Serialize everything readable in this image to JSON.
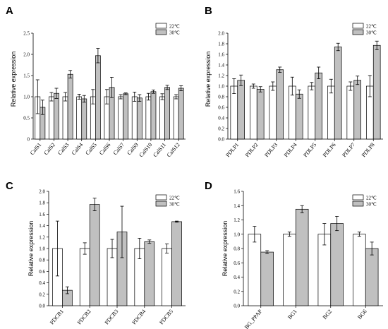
{
  "colors": {
    "s22": "#ffffff",
    "s30": "#c0c0c0",
    "stroke": "#000000"
  },
  "chart_data": [
    {
      "panel": "A",
      "type": "bar",
      "ylabel": "Relative expression",
      "ylim": [
        0,
        2.5
      ],
      "yticks": [
        "0",
        "0.5",
        "1.0",
        "1.5",
        "2.0",
        "2.5"
      ],
      "tick_values": [
        0,
        0.5,
        1.0,
        1.5,
        2.0,
        2.5
      ],
      "categories": [
        "CalS1",
        "CalS2",
        "CalS3",
        "CalS4",
        "CalS5",
        "CalS6",
        "CalS7",
        "CalS9",
        "CalS10",
        "CalS11",
        "CalS12"
      ],
      "series": [
        {
          "name": "22℃",
          "values": [
            1.0,
            1.0,
            1.0,
            1.0,
            1.0,
            1.0,
            1.0,
            1.0,
            1.0,
            1.0,
            1.0
          ],
          "errors": [
            0.4,
            0.1,
            0.1,
            0.06,
            0.17,
            0.17,
            0.05,
            0.11,
            0.08,
            0.07,
            0.05
          ]
        },
        {
          "name": "30℃",
          "values": [
            0.75,
            1.08,
            1.53,
            0.95,
            1.97,
            1.22,
            1.07,
            0.97,
            1.12,
            1.22,
            1.2
          ],
          "errors": [
            0.17,
            0.12,
            0.09,
            0.08,
            0.17,
            0.24,
            0.02,
            0.08,
            0.04,
            0.05,
            0.06
          ]
        }
      ]
    },
    {
      "panel": "B",
      "type": "bar",
      "ylabel": "Relative expression",
      "ylim": [
        0,
        2.0
      ],
      "yticks": [
        "0.0",
        "0.2",
        "0.4",
        "0.6",
        "0.8",
        "1.0",
        "1.2",
        "1.4",
        "1.6",
        "1.8",
        "2.0"
      ],
      "tick_values": [
        0,
        0.2,
        0.4,
        0.6,
        0.8,
        1.0,
        1.2,
        1.4,
        1.6,
        1.8,
        2.0
      ],
      "categories": [
        "PDLP1",
        "PDLP2",
        "PDLP3",
        "PDLP4",
        "PDLP5",
        "PDLP6",
        "PDLP7",
        "PDLP8"
      ],
      "series": [
        {
          "name": "22℃",
          "values": [
            1.0,
            1.0,
            1.0,
            1.0,
            1.0,
            1.0,
            1.0,
            1.0
          ],
          "errors": [
            0.14,
            0.04,
            0.08,
            0.17,
            0.07,
            0.13,
            0.08,
            0.2
          ]
        },
        {
          "name": "30℃",
          "values": [
            1.11,
            0.94,
            1.31,
            0.85,
            1.25,
            1.74,
            1.11,
            1.77
          ],
          "errors": [
            0.1,
            0.05,
            0.05,
            0.08,
            0.11,
            0.07,
            0.08,
            0.08
          ]
        }
      ]
    },
    {
      "panel": "C",
      "type": "bar",
      "ylabel": "Relative expression",
      "ylim": [
        0,
        2.0
      ],
      "yticks": [
        "0.0",
        "0.2",
        "0.4",
        "0.6",
        "0.8",
        "1.0",
        "1.2",
        "1.4",
        "1.6",
        "1.8",
        "2.0"
      ],
      "tick_values": [
        0,
        0.2,
        0.4,
        0.6,
        0.8,
        1.0,
        1.2,
        1.4,
        1.6,
        1.8,
        2.0
      ],
      "categories": [
        "PDCB1",
        "PDCB2",
        "PDCB3",
        "PDCB4",
        "PDCB5"
      ],
      "series": [
        {
          "name": "22℃",
          "values": [
            1.0,
            1.0,
            1.0,
            1.0,
            1.0
          ],
          "errors": [
            0.48,
            0.1,
            0.16,
            0.18,
            0.08
          ]
        },
        {
          "name": "30℃",
          "values": [
            0.27,
            1.77,
            1.29,
            1.12,
            1.47
          ],
          "errors": [
            0.06,
            0.11,
            0.45,
            0.03,
            0.01
          ]
        }
      ]
    },
    {
      "panel": "D",
      "type": "bar",
      "ylabel": "Relative expression",
      "ylim": [
        0,
        1.6
      ],
      "yticks": [
        "0.0",
        "0.2",
        "0.4",
        "0.6",
        "0.8",
        "1.0",
        "1.2",
        "1.4",
        "1.6"
      ],
      "tick_values": [
        0,
        0.2,
        0.4,
        0.6,
        0.8,
        1.0,
        1.2,
        1.4,
        1.6
      ],
      "categories": [
        "BG_PPAP",
        "BG1",
        "BG2",
        "BG6"
      ],
      "series": [
        {
          "name": "22℃",
          "values": [
            1.0,
            1.0,
            1.0,
            1.0
          ],
          "errors": [
            0.11,
            0.03,
            0.15,
            0.03
          ]
        },
        {
          "name": "30℃",
          "values": [
            0.75,
            1.35,
            1.15,
            0.8
          ],
          "errors": [
            0.02,
            0.05,
            0.1,
            0.09
          ]
        }
      ]
    }
  ]
}
